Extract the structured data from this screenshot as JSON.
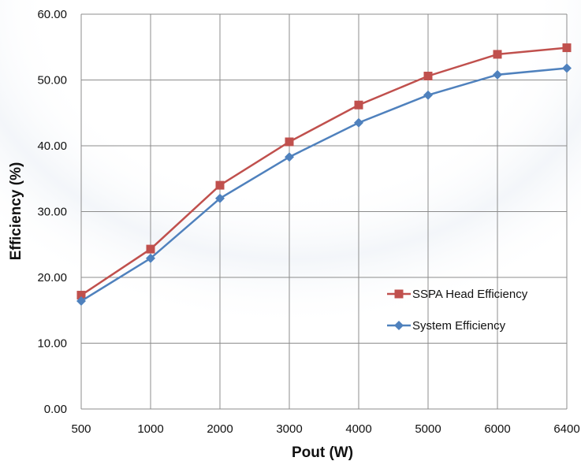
{
  "chart_data": {
    "type": "line",
    "categories": [
      "500",
      "1000",
      "2000",
      "3000",
      "4000",
      "5000",
      "6000",
      "6400"
    ],
    "xlabel": "Pout (W)",
    "ylabel": "Efficiency (%)",
    "ylim": [
      0,
      60
    ],
    "yticks": [
      "0.00",
      "10.00",
      "20.00",
      "30.00",
      "40.00",
      "50.00",
      "60.00"
    ],
    "grid": true,
    "legend_position": "right-middle",
    "series": [
      {
        "name": "SSPA Head Efficiency",
        "color": "#c0504d",
        "marker": "square",
        "values": [
          17.3,
          24.3,
          34.0,
          40.6,
          46.2,
          50.6,
          53.9,
          54.9
        ]
      },
      {
        "name": "System Efficiency",
        "color": "#4f81bd",
        "marker": "diamond",
        "values": [
          16.4,
          22.9,
          32.0,
          38.3,
          43.5,
          47.7,
          50.8,
          51.8
        ]
      }
    ]
  }
}
